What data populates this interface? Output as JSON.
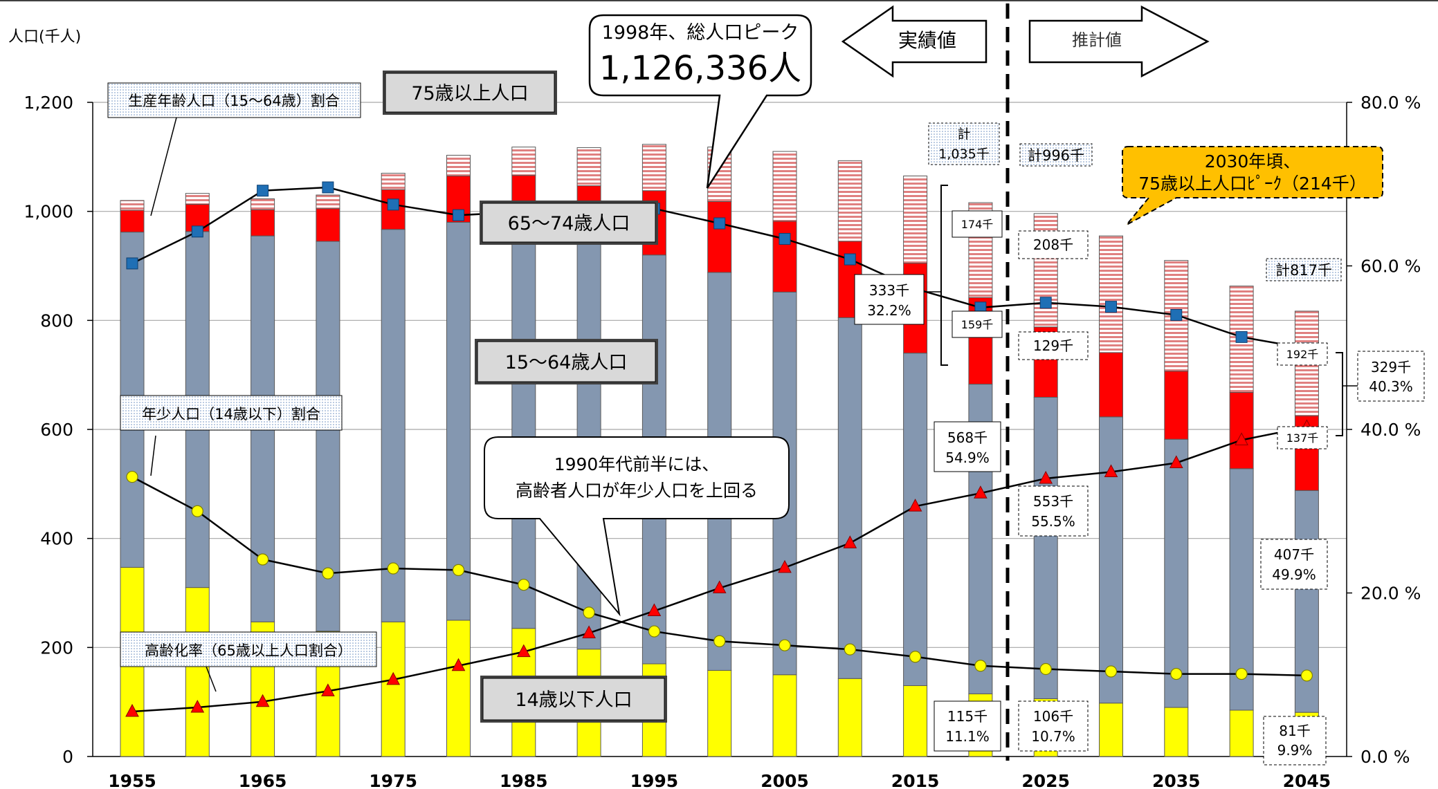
{
  "chart_data": {
    "type": "bar",
    "stacked": true,
    "title": "",
    "ylabel_left": "人口(千人)",
    "ylabel_right": "",
    "ylim_left": [
      0,
      1200
    ],
    "ylim_right": [
      0,
      80
    ],
    "y_ticks_left": [
      "0",
      "200",
      "400",
      "600",
      "800",
      "1,000",
      "1,200"
    ],
    "y_ticks_right": [
      "0.0 %",
      "20.0 %",
      "40.0 %",
      "60.0 %",
      "80.0 %"
    ],
    "x_tick_labels": [
      "1955",
      "1965",
      "1975",
      "1985",
      "1995",
      "2005",
      "2015",
      "2025",
      "2035",
      "2045"
    ],
    "categories": [
      "1955",
      "1960",
      "1965",
      "1970",
      "1975",
      "1980",
      "1985",
      "1990",
      "1995",
      "2000",
      "2005",
      "2010",
      "2015",
      "2020",
      "2025",
      "2030",
      "2035",
      "2040",
      "2045"
    ],
    "series": [
      {
        "name": "14歳以下人口",
        "type": "bar",
        "color": "#ffff00",
        "values": [
          347,
          310,
          247,
          230,
          247,
          250,
          235,
          197,
          170,
          158,
          150,
          143,
          130,
          115,
          106,
          98,
          90,
          85,
          81
        ]
      },
      {
        "name": "15～64歳人口",
        "type": "bar",
        "color": "#8497b0",
        "values": [
          615,
          653,
          708,
          715,
          720,
          730,
          745,
          755,
          750,
          730,
          702,
          662,
          610,
          568,
          553,
          525,
          492,
          443,
          407
        ]
      },
      {
        "name": "65～74歳人口",
        "type": "bar",
        "color": "#ff0000",
        "values": [
          40,
          50,
          48,
          60,
          73,
          85,
          86,
          95,
          118,
          130,
          130,
          140,
          165,
          159,
          129,
          118,
          125,
          140,
          137
        ]
      },
      {
        "name": "75歳以上人口",
        "type": "bar",
        "color": "#f4b0b0",
        "pattern": "horizontal-stripes",
        "values": [
          18,
          20,
          20,
          25,
          30,
          38,
          52,
          70,
          85,
          100,
          128,
          148,
          160,
          174,
          208,
          214,
          203,
          195,
          192
        ]
      },
      {
        "name": "生産年齢人口（15～64歳）割合",
        "type": "line",
        "axis": "right",
        "marker": "square",
        "color": "#1f6fb5",
        "values": [
          60.3,
          64.2,
          69.2,
          69.6,
          67.5,
          66.2,
          66.6,
          67.2,
          67.0,
          65.2,
          63.3,
          60.8,
          57.2,
          54.9,
          55.5,
          55.0,
          54.0,
          51.3,
          49.9
        ]
      },
      {
        "name": "年少人口（14歳以下）割合",
        "type": "line",
        "axis": "right",
        "marker": "circle",
        "color": "#ffff00",
        "values": [
          34.2,
          30.0,
          24.1,
          22.4,
          23.0,
          22.8,
          21.0,
          17.6,
          15.3,
          14.1,
          13.6,
          13.1,
          12.2,
          11.1,
          10.7,
          10.4,
          10.1,
          10.1,
          9.9
        ]
      },
      {
        "name": "高齢化率（65歳以上人口割合）",
        "type": "line",
        "axis": "right",
        "marker": "triangle",
        "color": "#ff0000",
        "values": [
          5.5,
          6.0,
          6.7,
          8.0,
          9.4,
          11.1,
          12.8,
          15.1,
          17.8,
          20.6,
          23.1,
          26.1,
          30.6,
          32.2,
          34.0,
          34.8,
          35.9,
          38.7,
          40.3
        ]
      }
    ]
  },
  "labels": {
    "actual": "実績値",
    "estimate": "推計値",
    "peak_title": "1998年、総人口ピーク",
    "peak_value": "1,126,336人",
    "over_line1": "1990年代前半には、",
    "over_line2": "高齢者人口が年少人口を上回る",
    "peak75_line1": "2030年頃、",
    "peak75_line2": "75歳以上人口ﾋﾟｰｸ（214千）",
    "box_75plus": "75歳以上人口",
    "box_65_74": "65～74歳人口",
    "box_15_64": "15～64歳人口",
    "box_0_14": "14歳以下人口",
    "leg_work": "生産年齢人口（15～64歳）割合",
    "leg_young": "年少人口（14歳以下）割合",
    "leg_aged": "高齢化率（65歳以上人口割合）"
  },
  "annotations": {
    "y2020_total_a": "計",
    "y2020_total_b": "1,035千",
    "y2025_total": "計996千",
    "y2045_total": "計817千",
    "y2020_75": "174千",
    "y2020_6574": "159千",
    "y2020_65p_a": "333千",
    "y2020_65p_b": "32.2%",
    "y2020_1564_a": "568千",
    "y2020_1564_b": "54.9%",
    "y2020_014_a": "115千",
    "y2020_014_b": "11.1%",
    "y2025_75": "208千",
    "y2025_6574": "129千",
    "y2025_1564_a": "553千",
    "y2025_1564_b": "55.5%",
    "y2025_014_a": "106千",
    "y2025_014_b": "10.7%",
    "y2045_75": "192千",
    "y2045_6574": "137千",
    "y2045_65p_a": "329千",
    "y2045_65p_b": "40.3%",
    "y2045_1564_a": "407千",
    "y2045_1564_b": "49.9%",
    "y2045_014_a": "81千",
    "y2045_014_b": "9.9%"
  }
}
